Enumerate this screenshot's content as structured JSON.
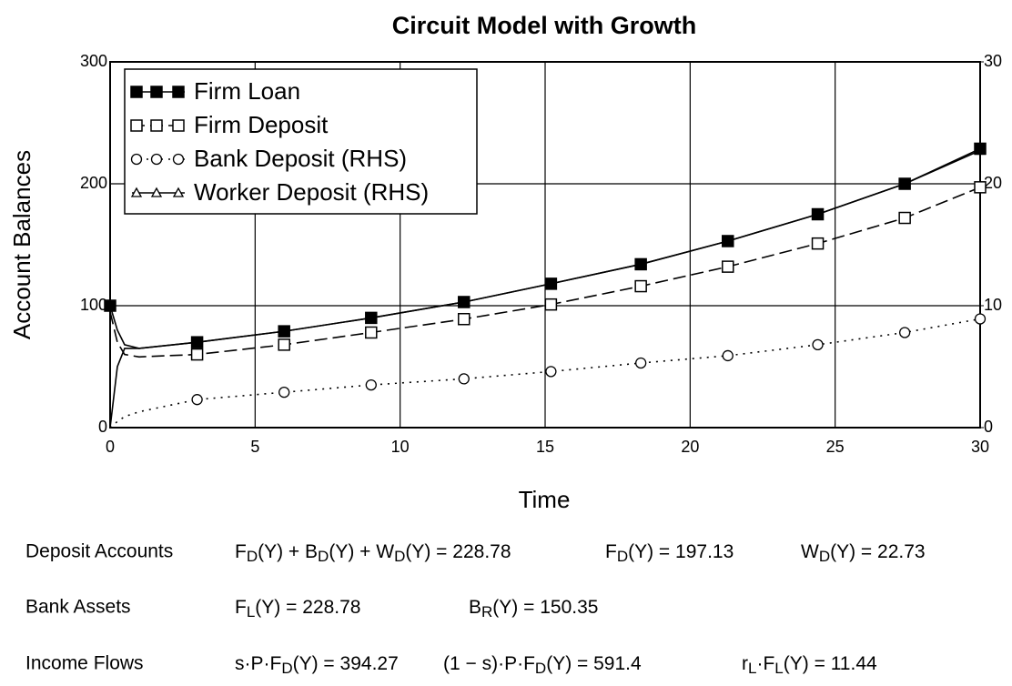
{
  "chart_data": {
    "type": "line",
    "title": "Circuit Model with Growth",
    "x_label": "Time",
    "y_label": "Account Balances",
    "x": [
      0,
      0.25,
      0.5,
      1,
      3,
      6,
      9,
      12.2,
      15.2,
      18.3,
      21.3,
      24.4,
      27.4,
      30
    ],
    "xlim": [
      0,
      30
    ],
    "xticks": [
      0,
      5,
      10,
      15,
      20,
      25,
      30
    ],
    "ylim": [
      0,
      300
    ],
    "yticks": [
      0,
      100,
      200,
      300
    ],
    "y2lim": [
      0,
      30
    ],
    "y2ticks": [
      0,
      10,
      20,
      30
    ],
    "grid": true,
    "legend": "upper left",
    "series": [
      {
        "name": "Firm Loan",
        "color": "#000000",
        "marker": "filled-square",
        "dash": "solid",
        "values": [
          100,
          80,
          68,
          65,
          70,
          79,
          90,
          103,
          118,
          134,
          153,
          175,
          200,
          228.78
        ]
      },
      {
        "name": "Firm Deposit",
        "color": "#000000",
        "marker": "open-square",
        "dash": "dashed",
        "values": [
          95,
          70,
          60,
          58,
          60,
          68,
          78,
          89,
          101,
          116,
          132,
          151,
          172,
          197.13
        ]
      },
      {
        "name": "Bank Deposit (RHS)",
        "color": "#000000",
        "marker": "open-circle",
        "dash": "dotted",
        "axis": "y2",
        "values": [
          0,
          0.5,
          0.9,
          1.3,
          2.3,
          2.9,
          3.5,
          4.0,
          4.6,
          5.3,
          5.9,
          6.8,
          7.8,
          8.92
        ]
      },
      {
        "name": "Worker Deposit (RHS)",
        "color": "#000000",
        "marker": "open-triangle",
        "dash": "solid",
        "axis": "y2",
        "values": [
          0,
          5,
          6.5,
          6.5,
          7,
          7.9,
          9,
          10.3,
          11.8,
          13.4,
          15.3,
          17.5,
          20,
          22.73
        ]
      }
    ]
  },
  "results": [
    {
      "label": "Deposit Accounts",
      "formulas": [
        [
          "F",
          "D",
          "(Y) + B",
          "D",
          "(Y) + W",
          "D",
          "(Y) = 228.78"
        ],
        [
          "F",
          "D",
          "(Y) = 197.13"
        ],
        [
          "W",
          "D",
          "(Y) = 22.73"
        ]
      ]
    },
    {
      "label": "Bank Assets",
      "formulas": [
        [
          "F",
          "L",
          "(Y) = 228.78"
        ],
        [
          "B",
          "R",
          "(Y) = 150.35"
        ]
      ]
    },
    {
      "label": "Income Flows",
      "formulas": [
        [
          "s·P·F",
          "D",
          "(Y) = 394.27"
        ],
        [
          "(1 − s)·P·F",
          "D",
          "(Y) = 591.4"
        ],
        [
          "r",
          "L",
          "·F",
          "L",
          "(Y) = 11.44"
        ]
      ]
    }
  ]
}
